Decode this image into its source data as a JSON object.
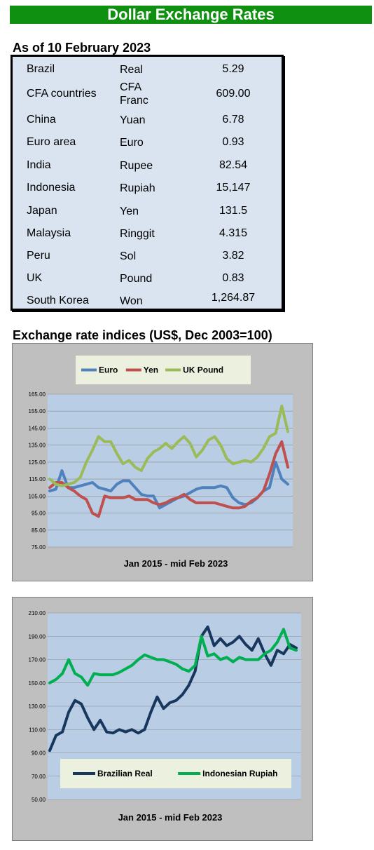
{
  "banner": "Dollar Exchange Rates",
  "rates": {
    "title": "As of 10 February 2023",
    "rows": [
      {
        "country": "Brazil",
        "currency": "Real",
        "rate": "5.29"
      },
      {
        "country": "CFA countries",
        "currency": "CFA Franc",
        "rate": "609.00"
      },
      {
        "country": "China",
        "currency": "Yuan",
        "rate": "6.78"
      },
      {
        "country": "Euro area",
        "currency": "Euro",
        "rate": "0.93"
      },
      {
        "country": "India",
        "currency": "Rupee",
        "rate": "82.54"
      },
      {
        "country": "Indonesia",
        "currency": "Rupiah",
        "rate": "15,147"
      },
      {
        "country": "Japan",
        "currency": "Yen",
        "rate": "131.5"
      },
      {
        "country": "Malaysia",
        "currency": "Ringgit",
        "rate": "4.315"
      },
      {
        "country": "Peru",
        "currency": "Sol",
        "rate": "3.82"
      },
      {
        "country": "UK",
        "currency": "Pound",
        "rate": "0.83"
      },
      {
        "country": "South Korea",
        "currency": "Won",
        "rate": "1,264.87"
      }
    ]
  },
  "section_title": "Exchange rate indices (US$, Dec 2003=100)",
  "chart_data": [
    {
      "type": "line",
      "xlabel": "Jan 2015 -  mid Feb 2023",
      "ylim": [
        75,
        165
      ],
      "yticks": [
        "75.00",
        "85.00",
        "95.00",
        "105.00",
        "115.00",
        "125.00",
        "135.00",
        "145.00",
        "155.00",
        "165.00"
      ],
      "legend_position": "top",
      "series": [
        {
          "name": "Euro",
          "color": "#4f81bd",
          "values": [
            108,
            109,
            120,
            110,
            110,
            111,
            112,
            113,
            110,
            109,
            108,
            112,
            114,
            114,
            110,
            106,
            105,
            105,
            98,
            100,
            102,
            104,
            105,
            107,
            109,
            110,
            110,
            110,
            111,
            110,
            104,
            101,
            100,
            101,
            104,
            108,
            110,
            125,
            115,
            112
          ]
        },
        {
          "name": "Yen",
          "color": "#c0504d",
          "values": [
            110,
            113,
            113,
            110,
            108,
            105,
            103,
            95,
            93,
            105,
            104,
            104,
            104,
            105,
            103,
            103,
            103,
            101,
            100,
            101,
            103,
            104,
            106,
            103,
            101,
            101,
            101,
            101,
            100,
            99,
            98,
            98,
            99,
            102,
            104,
            108,
            118,
            130,
            137,
            122
          ]
        },
        {
          "name": "UK Pound",
          "color": "#9bbb59",
          "values": [
            115,
            112,
            111,
            112,
            113,
            116,
            125,
            132,
            140,
            137,
            137,
            130,
            124,
            126,
            122,
            120,
            127,
            131,
            133,
            136,
            133,
            137,
            140,
            136,
            128,
            132,
            138,
            140,
            135,
            127,
            124,
            125,
            126,
            125,
            128,
            133,
            140,
            142,
            158,
            143
          ]
        }
      ]
    },
    {
      "type": "line",
      "xlabel": "Jan 2015 - mid Feb 2023",
      "ylim": [
        50,
        210
      ],
      "yticks": [
        "50.00",
        "70.00",
        "90.00",
        "110.00",
        "130.00",
        "150.00",
        "170.00",
        "190.00",
        "210.00"
      ],
      "legend_position": "bottom",
      "series": [
        {
          "name": "Brazilian Real",
          "color": "#17375e",
          "values": [
            92,
            105,
            108,
            125,
            135,
            132,
            120,
            110,
            118,
            108,
            107,
            110,
            108,
            110,
            107,
            110,
            125,
            138,
            128,
            133,
            135,
            140,
            148,
            160,
            190,
            198,
            182,
            188,
            182,
            185,
            190,
            183,
            178,
            188,
            175,
            165,
            178,
            175,
            183,
            180
          ]
        },
        {
          "name": "Indonesian Rupiah",
          "color": "#00b050",
          "values": [
            150,
            153,
            158,
            170,
            158,
            155,
            148,
            158,
            157,
            157,
            157,
            159,
            162,
            165,
            170,
            174,
            172,
            170,
            170,
            168,
            166,
            162,
            160,
            165,
            190,
            173,
            175,
            170,
            172,
            168,
            172,
            170,
            170,
            170,
            175,
            178,
            185,
            196,
            180,
            178
          ]
        }
      ]
    }
  ]
}
